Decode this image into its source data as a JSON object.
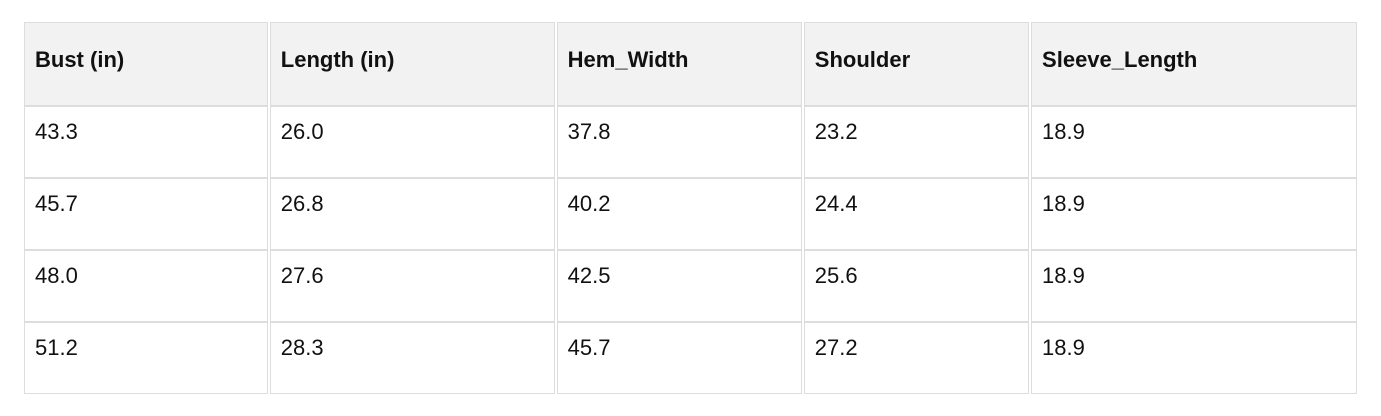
{
  "table": {
    "columns": [
      "Bust (in)",
      "Length (in)",
      "Hem_Width",
      "Shoulder",
      "Sleeve_Length"
    ],
    "rows": [
      [
        "43.3",
        "26.0",
        "37.8",
        "23.2",
        "18.9"
      ],
      [
        "45.7",
        "26.8",
        "40.2",
        "24.4",
        "18.9"
      ],
      [
        "48.0",
        "27.6",
        "42.5",
        "25.6",
        "18.9"
      ],
      [
        "51.2",
        "28.3",
        "45.7",
        "27.2",
        "18.9"
      ]
    ]
  },
  "colors": {
    "header_background": "#f2f2f2",
    "row_background": "#ffffff",
    "border": "#dddddd",
    "text": "#111111",
    "page_background": "#ffffff"
  },
  "chart_data": {
    "type": "table",
    "title": "",
    "columns": [
      "Bust (in)",
      "Length (in)",
      "Hem_Width",
      "Shoulder",
      "Sleeve_Length"
    ],
    "rows": [
      [
        43.3,
        26.0,
        37.8,
        23.2,
        18.9
      ],
      [
        45.7,
        26.8,
        40.2,
        24.4,
        18.9
      ],
      [
        48.0,
        27.6,
        42.5,
        25.6,
        18.9
      ],
      [
        51.2,
        28.3,
        45.7,
        27.2,
        18.9
      ]
    ],
    "notes": "Header row has light gray background with bold text; data rows white; thin light gray cell borders with small horizontal gaps between columns."
  }
}
